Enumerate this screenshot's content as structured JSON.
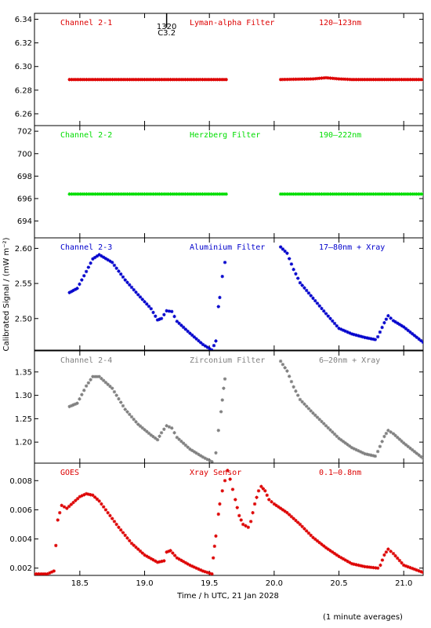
{
  "chart_data": {
    "type": "scatter",
    "xlabel": "Time / h UTC, 21 Jan 2028",
    "ylabel": "Calibrated Signal / (mW m⁻²)",
    "xlim": [
      18.15,
      21.15
    ],
    "xticks": [
      18.5,
      19.0,
      19.5,
      20.0,
      20.5,
      21.0
    ],
    "xtick_labels": [
      "18.5",
      "19.0",
      "19.5",
      "20.0",
      "20.5",
      "21.0"
    ],
    "note": "(1 minute averages)",
    "marker": "asterisk",
    "flare": {
      "x": 19.17,
      "ylim_frac": 0.12,
      "label_top": "1320",
      "label_bottom": "C3.2"
    },
    "panels": [
      {
        "channel": "Channel 2-1",
        "filter": "Lyman-alpha Filter",
        "band": "120–123nm",
        "color": "#dd0000",
        "ylim": [
          6.25,
          6.345
        ],
        "yticks": [
          6.26,
          6.28,
          6.3,
          6.32,
          6.34
        ],
        "ytick_labels": [
          "6.26",
          "6.28",
          "6.30",
          "6.32",
          "6.34"
        ],
        "segments": [
          {
            "x": [
              18.42,
              19.63
            ],
            "y": [
              6.289,
              6.289
            ]
          },
          {
            "x": [
              20.05,
              20.3,
              20.4,
              20.5,
              20.6,
              21.15
            ],
            "y": [
              6.289,
              6.2895,
              6.2905,
              6.2895,
              6.289,
              6.289
            ]
          }
        ]
      },
      {
        "channel": "Channel 2-2",
        "filter": "Herzberg Filter",
        "band": "190–222nm",
        "color": "#00dd00",
        "ylim": [
          692.5,
          702.5
        ],
        "yticks": [
          694,
          696,
          698,
          700,
          702
        ],
        "ytick_labels": [
          "694",
          "696",
          "698",
          "700",
          "702"
        ],
        "segments": [
          {
            "x": [
              18.42,
              19.63
            ],
            "y": [
              696.4,
              696.4
            ]
          },
          {
            "x": [
              20.05,
              21.15
            ],
            "y": [
              696.4,
              696.4
            ]
          }
        ]
      },
      {
        "channel": "Channel 2-3",
        "filter": "Aluminium Filter",
        "band": "17–80nm + Xray",
        "color": "#0000cc",
        "ylim": [
          2.455,
          2.615
        ],
        "yticks": [
          2.5,
          2.55,
          2.6
        ],
        "ytick_labels": [
          "2.50",
          "2.55",
          "2.60"
        ],
        "segments": [
          {
            "x": [
              18.42,
              18.48,
              18.55,
              18.6,
              18.65,
              18.75,
              18.85,
              18.95,
              19.05,
              19.1,
              19.13,
              19.17,
              19.21,
              19.25,
              19.35,
              19.45,
              19.52,
              19.55
            ],
            "y": [
              2.537,
              2.543,
              2.567,
              2.585,
              2.591,
              2.58,
              2.555,
              2.534,
              2.514,
              2.498,
              2.5,
              2.511,
              2.51,
              2.496,
              2.479,
              2.463,
              2.455,
              2.468
            ]
          },
          {
            "x": [
              19.57,
              19.58,
              19.6,
              19.62
            ],
            "y": [
              2.517,
              2.53,
              2.56,
              2.58
            ]
          },
          {
            "x": [
              20.05,
              20.1,
              20.15,
              20.2,
              20.3,
              20.4,
              20.5,
              20.6,
              20.7,
              20.78,
              20.8,
              20.85,
              20.88,
              20.92,
              21.0,
              21.15
            ],
            "y": [
              2.602,
              2.593,
              2.57,
              2.551,
              2.529,
              2.507,
              2.486,
              2.478,
              2.473,
              2.47,
              2.474,
              2.494,
              2.504,
              2.497,
              2.488,
              2.466
            ]
          }
        ]
      },
      {
        "channel": "Channel 2-4",
        "filter": "Zirconium Filter",
        "band": "6–20nm + Xray",
        "color": "#808080",
        "ylim": [
          1.155,
          1.395
        ],
        "yticks": [
          1.2,
          1.25,
          1.3,
          1.35
        ],
        "ytick_labels": [
          "1.20",
          "1.25",
          "1.30",
          "1.35"
        ],
        "segments": [
          {
            "x": [
              18.42,
              18.48,
              18.55,
              18.6,
              18.65,
              18.75,
              18.85,
              18.95,
              19.05,
              19.1,
              19.13,
              19.17,
              19.21,
              19.25,
              19.35,
              19.45,
              19.52
            ],
            "y": [
              1.276,
              1.283,
              1.32,
              1.34,
              1.34,
              1.315,
              1.27,
              1.238,
              1.215,
              1.205,
              1.22,
              1.235,
              1.23,
              1.21,
              1.185,
              1.168,
              1.158
            ]
          },
          {
            "x": [
              19.55,
              19.57,
              19.59,
              19.6,
              19.61,
              19.62
            ],
            "y": [
              1.177,
              1.225,
              1.265,
              1.29,
              1.315,
              1.335
            ]
          },
          {
            "x": [
              20.05,
              20.1,
              20.15,
              20.2,
              20.3,
              20.4,
              20.5,
              20.6,
              20.7,
              20.78,
              20.8,
              20.85,
              20.88,
              20.92,
              21.0,
              21.15
            ],
            "y": [
              1.373,
              1.352,
              1.318,
              1.291,
              1.262,
              1.235,
              1.208,
              1.188,
              1.175,
              1.17,
              1.18,
              1.212,
              1.225,
              1.218,
              1.198,
              1.165
            ]
          }
        ]
      },
      {
        "channel": "GOES",
        "filter": "Xray Sensor",
        "band": "0.1–0.8nm",
        "color": "#dd0000",
        "ylim": [
          0.0015,
          0.0092
        ],
        "yticks": [
          0.002,
          0.004,
          0.006,
          0.008
        ],
        "ytick_labels": [
          "0.002",
          "0.004",
          "0.006",
          "0.008"
        ],
        "segments": [
          {
            "x": [
              18.15,
              18.25,
              18.3,
              18.33,
              18.36,
              18.4,
              18.45,
              18.5,
              18.55,
              18.6,
              18.65,
              18.7,
              18.8,
              18.9,
              19.0,
              19.1,
              19.15,
              19.17,
              19.2,
              19.25,
              19.35,
              19.45,
              19.52
            ],
            "y": [
              0.0016,
              0.0016,
              0.0018,
              0.0053,
              0.0063,
              0.0061,
              0.0065,
              0.0069,
              0.0071,
              0.007,
              0.0066,
              0.006,
              0.0048,
              0.0037,
              0.0029,
              0.0024,
              0.0025,
              0.0031,
              0.0032,
              0.0027,
              0.0022,
              0.0018,
              0.0016
            ]
          },
          {
            "x": [
              19.53,
              19.54,
              19.55,
              19.57,
              19.58,
              19.6,
              19.62,
              19.64,
              19.66,
              19.68,
              19.7,
              19.73,
              19.76,
              19.8,
              19.82,
              19.85,
              19.88,
              19.9,
              19.93,
              19.96,
              20.0,
              20.1,
              20.2,
              20.3,
              20.4,
              20.5,
              20.6,
              20.7,
              20.8,
              20.82,
              20.85,
              20.88,
              20.92,
              21.0,
              21.15
            ],
            "y": [
              0.0027,
              0.0035,
              0.0042,
              0.0057,
              0.0064,
              0.0073,
              0.008,
              0.0087,
              0.0081,
              0.0074,
              0.0067,
              0.0056,
              0.005,
              0.0048,
              0.0052,
              0.0064,
              0.0073,
              0.0076,
              0.0073,
              0.0067,
              0.0064,
              0.0058,
              0.005,
              0.0041,
              0.0034,
              0.0028,
              0.0023,
              0.0021,
              0.002,
              0.0022,
              0.0029,
              0.0033,
              0.003,
              0.0022,
              0.0017
            ]
          }
        ]
      }
    ]
  }
}
